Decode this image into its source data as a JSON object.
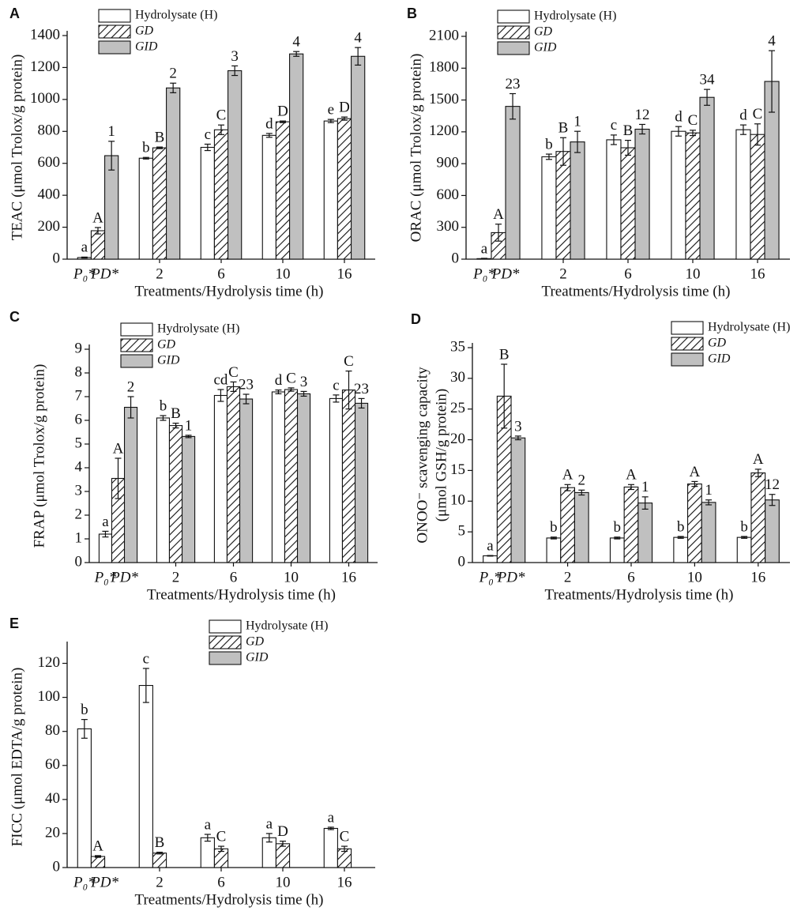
{
  "chart_data": [
    {
      "type": "bar",
      "panel": "A",
      "ylabel": "TEAC (μmol Trolox/g protein)",
      "xlabel": "Treatments/Hydrolysis time (h)",
      "first_group_labels": [
        "P₀*",
        "PD*"
      ],
      "categories": [
        null,
        "2",
        "6",
        "10",
        "16"
      ],
      "ylim": [
        0,
        1400
      ],
      "yticks": [
        0,
        200,
        400,
        600,
        800,
        1000,
        1200,
        1400
      ],
      "legend": "upper left",
      "series": [
        {
          "name": "Hydrolysate (H)",
          "color": "#ffffff",
          "hatch": false,
          "values": [
            10,
            632,
            700,
            775,
            865
          ],
          "errors": [
            3,
            5,
            20,
            12,
            10
          ],
          "letters": [
            "a",
            "b",
            "c",
            "d",
            "e"
          ]
        },
        {
          "name": "GD",
          "color": "#ffffff",
          "hatch": true,
          "values": [
            178,
            697,
            810,
            860,
            880
          ],
          "errors": [
            20,
            5,
            30,
            5,
            10
          ],
          "letters": [
            "A",
            "B",
            "C",
            "D",
            "D"
          ]
        },
        {
          "name": "GID",
          "color": "#c0c0c0",
          "hatch": false,
          "values": [
            648,
            1072,
            1180,
            1285,
            1270
          ],
          "errors": [
            90,
            30,
            30,
            15,
            55
          ],
          "letters": [
            "1",
            "2",
            "3",
            "4",
            "4"
          ]
        }
      ]
    },
    {
      "type": "bar",
      "panel": "B",
      "ylabel": "ORAC (μmol Trolox/g protein)",
      "xlabel": "Treatments/Hydrolysis time (h)",
      "first_group_labels": [
        "P₀*",
        "PD*"
      ],
      "categories": [
        null,
        "2",
        "6",
        "10",
        "16"
      ],
      "ylim": [
        0,
        2100
      ],
      "yticks": [
        0,
        300,
        600,
        900,
        1200,
        1500,
        1800,
        2100
      ],
      "legend": "upper left",
      "series": [
        {
          "name": "Hydrolysate (H)",
          "color": "#ffffff",
          "hatch": false,
          "values": [
            5,
            965,
            1125,
            1205,
            1220
          ],
          "errors": [
            3,
            25,
            45,
            45,
            45
          ],
          "letters": [
            "a",
            "b",
            "c",
            "d",
            "d"
          ]
        },
        {
          "name": "GD",
          "color": "#ffffff",
          "hatch": true,
          "values": [
            250,
            1015,
            1050,
            1190,
            1175
          ],
          "errors": [
            80,
            130,
            70,
            25,
            100
          ],
          "letters": [
            "A",
            "B",
            "B",
            "C",
            "C"
          ]
        },
        {
          "name": "GID",
          "color": "#c0c0c0",
          "hatch": false,
          "values": [
            1440,
            1105,
            1225,
            1525,
            1675
          ],
          "errors": [
            120,
            100,
            45,
            75,
            290
          ],
          "letters": [
            "23",
            "1",
            "12",
            "34",
            "4"
          ]
        }
      ]
    },
    {
      "type": "bar",
      "panel": "C",
      "ylabel": "FRAP (μmol Trolox/g protein)",
      "xlabel": "Treatments/Hydrolysis time (h)",
      "first_group_labels": [
        "P₀*",
        "PD*"
      ],
      "categories": [
        null,
        "2",
        "6",
        "10",
        "16"
      ],
      "ylim": [
        0,
        9
      ],
      "yticks": [
        0,
        1,
        2,
        3,
        4,
        5,
        6,
        7,
        8,
        9
      ],
      "legend": "upper left",
      "series": [
        {
          "name": "Hydrolysate (H)",
          "color": "#ffffff",
          "hatch": false,
          "values": [
            1.2,
            6.1,
            7.05,
            7.2,
            6.92
          ],
          "errors": [
            0.12,
            0.1,
            0.25,
            0.08,
            0.15
          ],
          "letters": [
            "a",
            "b",
            "cd",
            "d",
            "c"
          ]
        },
        {
          "name": "GD",
          "color": "#ffffff",
          "hatch": true,
          "values": [
            3.55,
            5.78,
            7.42,
            7.3,
            7.28
          ],
          "errors": [
            0.85,
            0.1,
            0.2,
            0.07,
            0.8
          ],
          "letters": [
            "A",
            "B",
            "C",
            "C",
            "C"
          ]
        },
        {
          "name": "GID",
          "color": "#c0c0c0",
          "hatch": false,
          "values": [
            6.55,
            5.32,
            6.9,
            7.12,
            6.72
          ],
          "errors": [
            0.45,
            0.05,
            0.2,
            0.1,
            0.2
          ],
          "letters": [
            "2",
            "1",
            "23",
            "3",
            "23"
          ]
        }
      ]
    },
    {
      "type": "bar",
      "panel": "D",
      "ylabel": [
        "ONOO⁻ scavenging capacity",
        "(μmol GSH/g protein)"
      ],
      "xlabel": "Treatments/Hydrolysis time (h)",
      "first_group_labels": [
        "P₀*",
        "PD*"
      ],
      "categories": [
        null,
        "2",
        "6",
        "10",
        "16"
      ],
      "ylim": [
        0,
        35
      ],
      "yticks": [
        0,
        5,
        10,
        15,
        20,
        25,
        30,
        35
      ],
      "legend": "upper right",
      "series": [
        {
          "name": "Hydrolysate (H)",
          "color": "#ffffff",
          "hatch": false,
          "values": [
            1.1,
            4.0,
            4.0,
            4.1,
            4.1
          ],
          "errors": [
            0.05,
            0.15,
            0.15,
            0.15,
            0.15
          ],
          "letters": [
            "a",
            "b",
            "b",
            "b",
            "b"
          ]
        },
        {
          "name": "GD",
          "color": "#ffffff",
          "hatch": true,
          "values": [
            27.1,
            12.2,
            12.3,
            12.8,
            14.6
          ],
          "errors": [
            5.2,
            0.5,
            0.4,
            0.4,
            0.6
          ],
          "letters": [
            "B",
            "A",
            "A",
            "A",
            "A"
          ]
        },
        {
          "name": "GID",
          "color": "#c0c0c0",
          "hatch": false,
          "values": [
            20.3,
            11.4,
            9.7,
            9.8,
            10.2
          ],
          "errors": [
            0.3,
            0.4,
            1.0,
            0.4,
            0.9
          ],
          "letters": [
            "3",
            "2",
            "1",
            "1",
            "12"
          ]
        }
      ]
    },
    {
      "type": "bar",
      "panel": "E",
      "ylabel": "FICC (μmol EDTA/g protein)",
      "xlabel": "Treatments/Hydrolysis time (h)",
      "first_group_labels": [
        "P₀*",
        "PD*"
      ],
      "categories": [
        null,
        "2",
        "6",
        "10",
        "16"
      ],
      "ylim": [
        0,
        130
      ],
      "yticks": [
        0,
        20,
        40,
        60,
        80,
        100,
        120
      ],
      "legend": "upper center",
      "series": [
        {
          "name": "Hydrolysate (H)",
          "color": "#ffffff",
          "hatch": false,
          "values": [
            81.5,
            107,
            17.5,
            17.5,
            23
          ],
          "errors": [
            5.5,
            10,
            2,
            2.5,
            0.7
          ],
          "letters": [
            "b",
            "c",
            "a",
            "a",
            "a"
          ]
        },
        {
          "name": "GD",
          "color": "#ffffff",
          "hatch": true,
          "values": [
            6.5,
            8.5,
            11,
            14,
            11
          ],
          "errors": [
            0.5,
            0.5,
            1.5,
            1.5,
            1.5
          ],
          "letters": [
            "A",
            "B",
            "C",
            "D",
            "C"
          ]
        },
        {
          "name": "GID",
          "color": "#c0c0c0",
          "hatch": false,
          "values": [
            null,
            null,
            null,
            null,
            null
          ],
          "errors": [
            null,
            null,
            null,
            null,
            null
          ],
          "letters": [
            null,
            null,
            null,
            null,
            null
          ]
        }
      ]
    }
  ]
}
